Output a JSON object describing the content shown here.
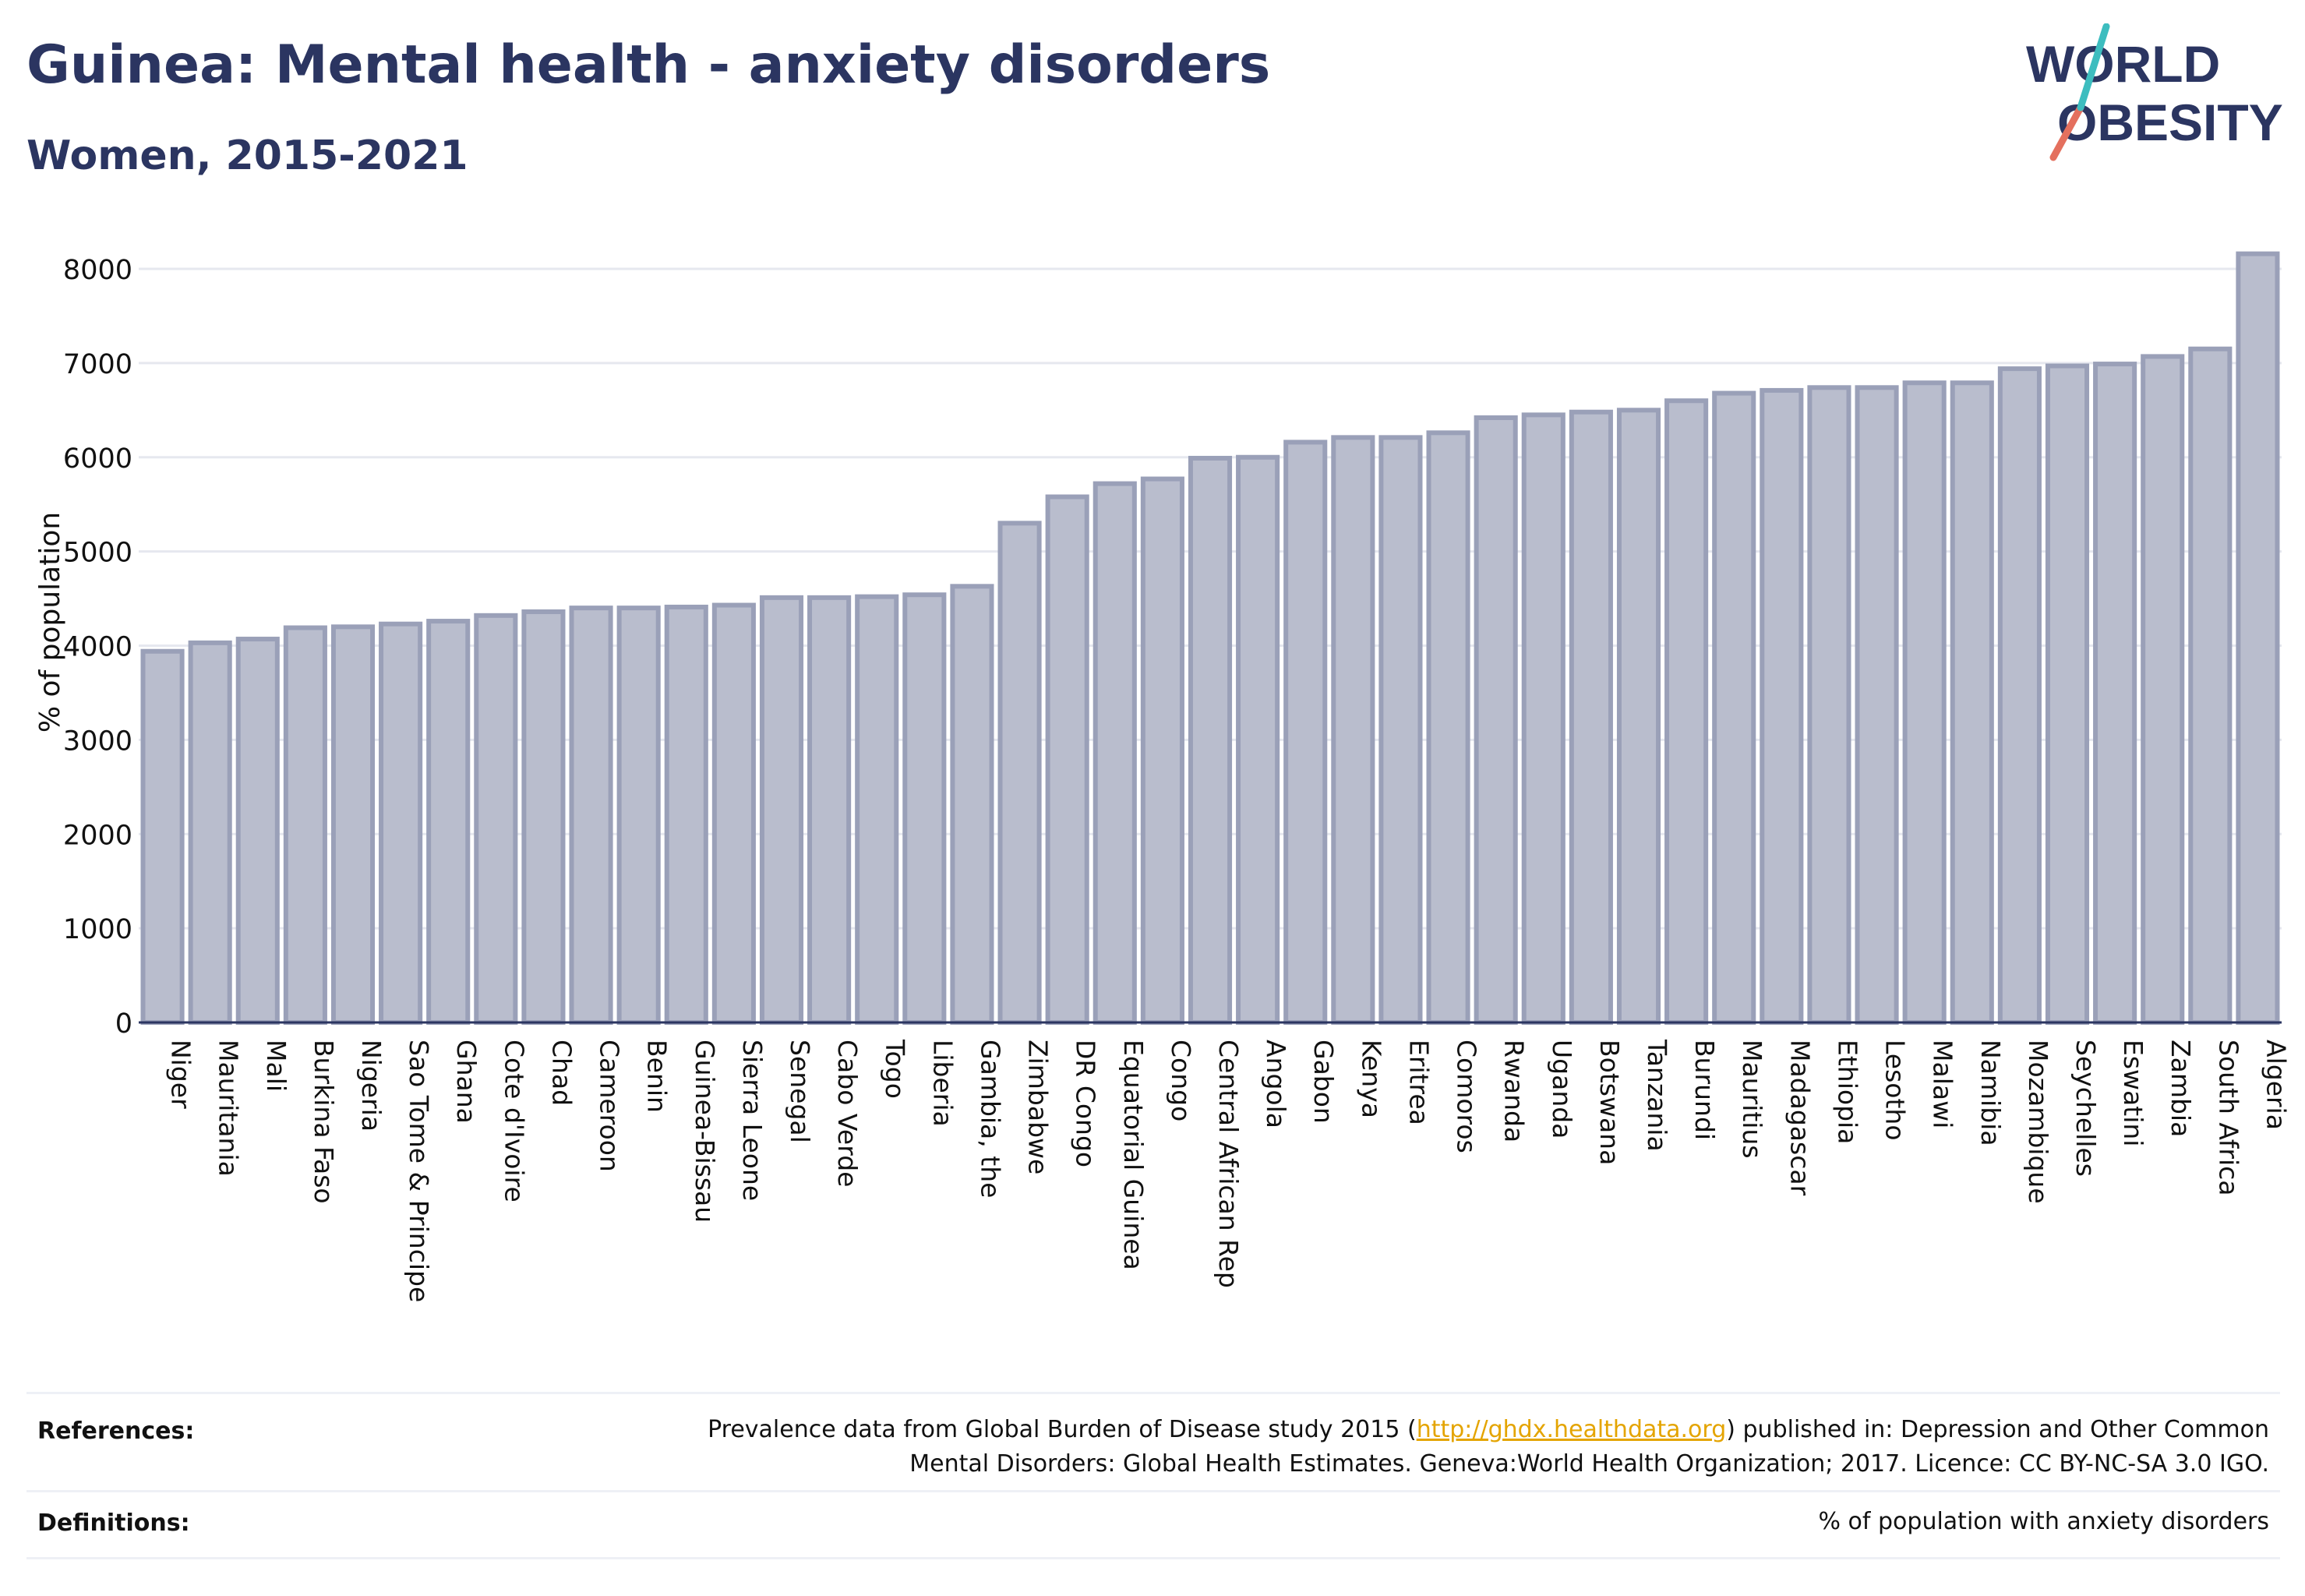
{
  "header": {
    "title": "Guinea: Mental health - anxiety disorders",
    "subtitle": "Women, 2015-2021"
  },
  "logo": {
    "line1": "WORLD",
    "line2": "OBESITY"
  },
  "chart_data": {
    "type": "bar",
    "ylabel": "% of population",
    "ylim": [
      0,
      8300
    ],
    "yticks": [
      0,
      1000,
      2000,
      3000,
      4000,
      5000,
      6000,
      7000,
      8000
    ],
    "grid": true,
    "bar_color": "#b9bdcd",
    "bar_edge_color": "#9aa0b8",
    "categories": [
      "Niger",
      "Mauritania",
      "Mali",
      "Burkina Faso",
      "Nigeria",
      "Sao Tome & Principe",
      "Ghana",
      "Cote d'Ivoire",
      "Chad",
      "Cameroon",
      "Benin",
      "Guinea-Bissau",
      "Sierra Leone",
      "Senegal",
      "Cabo Verde",
      "Togo",
      "Liberia",
      "Gambia, the",
      "Zimbabwe",
      "DR Congo",
      "Equatorial Guinea",
      "Congo",
      "Central African Rep",
      "Angola",
      "Gabon",
      "Kenya",
      "Eritrea",
      "Comoros",
      "Rwanda",
      "Uganda",
      "Botswana",
      "Tanzania",
      "Burundi",
      "Mauritius",
      "Madagascar",
      "Ethiopia",
      "Lesotho",
      "Malawi",
      "Namibia",
      "Mozambique",
      "Seychelles",
      "Eswatini",
      "Zambia",
      "South Africa",
      "Algeria"
    ],
    "values": [
      3940,
      4030,
      4070,
      4190,
      4200,
      4230,
      4260,
      4320,
      4360,
      4400,
      4400,
      4410,
      4430,
      4510,
      4510,
      4520,
      4540,
      4630,
      5300,
      5580,
      5720,
      5770,
      5990,
      6000,
      6160,
      6210,
      6210,
      6260,
      6420,
      6450,
      6480,
      6500,
      6600,
      6680,
      6710,
      6740,
      6740,
      6790,
      6790,
      6940,
      6970,
      6990,
      7070,
      7150,
      8160
    ]
  },
  "footer": {
    "references_label": "References:",
    "references_text_1": "Prevalence data from Global Burden of Disease study 2015 (",
    "references_link": "http://ghdx.healthdata.org",
    "references_text_2": ") published in: Depression and Other Common",
    "references_text_3": "Mental Disorders: Global Health Estimates. Geneva:World Health Organization; 2017. Licence: CC BY-NC-SA 3.0 IGO.",
    "definitions_label": "Definitions:",
    "definitions_text": "% of population with anxiety disorders"
  }
}
